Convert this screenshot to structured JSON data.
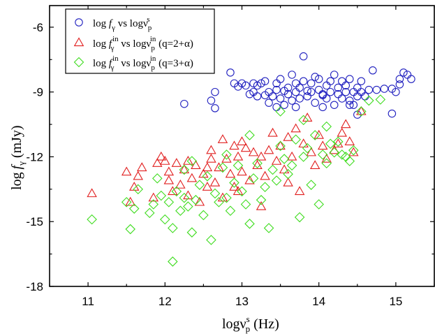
{
  "chart_data": {
    "type": "scatter",
    "title": "",
    "xlabel": {
      "main": "logν",
      "sup": "s",
      "sub": "p",
      "unit": " (Hz)"
    },
    "ylabel": {
      "main": "log",
      "var": "f",
      "sub": "γ",
      "unit": " (mJy)"
    },
    "xlim": [
      10.5,
      15.5
    ],
    "ylim": [
      -18,
      -5
    ],
    "x_ticks": [
      11,
      12,
      13,
      14,
      15
    ],
    "x_tick_labels": [
      "11",
      "12",
      "13",
      "14",
      "15"
    ],
    "y_ticks": [
      -18,
      -15,
      -12,
      -9,
      -6
    ],
    "y_tick_labels": [
      "-18",
      "-15",
      "-12",
      "-9",
      "-6"
    ],
    "grid": false,
    "legend_position": "top-left",
    "legend": [
      {
        "parts": [
          "log ",
          "f",
          "γ",
          " vs logν",
          "p",
          "s",
          ""
        ]
      },
      {
        "parts": [
          "log ",
          "f",
          "γ",
          " vs logν",
          "p",
          "in",
          " (q=2+α)"
        ],
        "sup_on_f": "in"
      },
      {
        "parts": [
          "log ",
          "f",
          "γ",
          " vs logν",
          "p",
          "in",
          " (q=3+α)"
        ],
        "sup_on_f": "in"
      }
    ],
    "series": [
      {
        "marker": "circle",
        "color": "#1f1fbf",
        "points": [
          [
            12.25,
            -9.55
          ],
          [
            12.6,
            -9.4
          ],
          [
            12.65,
            -9.0
          ],
          [
            12.65,
            -9.75
          ],
          [
            12.85,
            -8.1
          ],
          [
            12.9,
            -8.6
          ],
          [
            12.95,
            -8.75
          ],
          [
            13.0,
            -8.6
          ],
          [
            13.05,
            -8.7
          ],
          [
            13.1,
            -9.1
          ],
          [
            13.15,
            -9.0
          ],
          [
            13.2,
            -9.2
          ],
          [
            13.2,
            -8.7
          ],
          [
            13.25,
            -8.6
          ],
          [
            13.3,
            -9.15
          ],
          [
            13.3,
            -8.5
          ],
          [
            13.35,
            -9.0
          ],
          [
            13.35,
            -9.5
          ],
          [
            13.4,
            -9.2
          ],
          [
            13.45,
            -8.9
          ],
          [
            13.45,
            -8.6
          ],
          [
            13.5,
            -9.3
          ],
          [
            13.5,
            -8.4
          ],
          [
            13.55,
            -8.95
          ],
          [
            13.55,
            -9.6
          ],
          [
            13.6,
            -9.1
          ],
          [
            13.6,
            -8.8
          ],
          [
            13.65,
            -8.2
          ],
          [
            13.65,
            -9.4
          ],
          [
            13.7,
            -8.6
          ],
          [
            13.7,
            -9.0
          ],
          [
            13.75,
            -8.8
          ],
          [
            13.75,
            -9.3
          ],
          [
            13.8,
            -8.5
          ],
          [
            13.8,
            -7.35
          ],
          [
            13.85,
            -8.95
          ],
          [
            13.85,
            -9.2
          ],
          [
            13.9,
            -9.0
          ],
          [
            13.9,
            -8.6
          ],
          [
            13.95,
            -8.3
          ],
          [
            13.95,
            -9.5
          ],
          [
            14.0,
            -8.9
          ],
          [
            14.0,
            -8.4
          ],
          [
            14.05,
            -9.1
          ],
          [
            14.05,
            -9.7
          ],
          [
            14.1,
            -8.7
          ],
          [
            14.1,
            -9.3
          ],
          [
            14.15,
            -8.5
          ],
          [
            14.15,
            -9.0
          ],
          [
            14.2,
            -8.2
          ],
          [
            14.2,
            -9.6
          ],
          [
            14.25,
            -8.8
          ],
          [
            14.25,
            -9.1
          ],
          [
            14.3,
            -8.5
          ],
          [
            14.3,
            -9.3
          ],
          [
            14.35,
            -9.0
          ],
          [
            14.35,
            -8.7
          ],
          [
            14.4,
            -9.4
          ],
          [
            14.4,
            -8.4
          ],
          [
            14.45,
            -9.0
          ],
          [
            14.45,
            -9.6
          ],
          [
            14.5,
            -8.8
          ],
          [
            14.5,
            -9.2
          ],
          [
            14.55,
            -8.5
          ],
          [
            14.55,
            -9.0
          ],
          [
            14.6,
            -9.2
          ],
          [
            14.65,
            -8.9
          ],
          [
            14.7,
            -8.0
          ],
          [
            14.75,
            -8.9
          ],
          [
            14.85,
            -8.85
          ],
          [
            14.95,
            -8.85
          ],
          [
            15.0,
            -9.0
          ],
          [
            15.05,
            -8.4
          ],
          [
            15.1,
            -8.1
          ],
          [
            15.15,
            -8.2
          ],
          [
            15.2,
            -8.4
          ],
          [
            15.05,
            -8.65
          ],
          [
            14.95,
            -10.0
          ],
          [
            14.5,
            -10.05
          ],
          [
            14.4,
            -9.6
          ],
          [
            14.05,
            -9.15
          ],
          [
            13.45,
            -9.7
          ],
          [
            13.15,
            -8.6
          ],
          [
            13.7,
            -9.7
          ]
        ]
      },
      {
        "marker": "triangle",
        "color": "#e11f1f",
        "points": [
          [
            11.05,
            -13.7
          ],
          [
            11.5,
            -12.7
          ],
          [
            11.55,
            -14.1
          ],
          [
            11.6,
            -13.4
          ],
          [
            11.65,
            -12.9
          ],
          [
            11.7,
            -12.5
          ],
          [
            11.85,
            -13.9
          ],
          [
            11.9,
            -12.3
          ],
          [
            11.95,
            -12.0
          ],
          [
            12.0,
            -12.2
          ],
          [
            12.05,
            -13.1
          ],
          [
            12.05,
            -12.7
          ],
          [
            12.1,
            -13.6
          ],
          [
            12.15,
            -12.3
          ],
          [
            12.2,
            -13.3
          ],
          [
            12.25,
            -12.6
          ],
          [
            12.3,
            -12.2
          ],
          [
            12.3,
            -13.8
          ],
          [
            12.35,
            -13.0
          ],
          [
            12.4,
            -12.4
          ],
          [
            12.45,
            -14.1
          ],
          [
            12.5,
            -12.8
          ],
          [
            12.55,
            -13.4
          ],
          [
            12.6,
            -11.7
          ],
          [
            12.6,
            -12.1
          ],
          [
            12.65,
            -13.2
          ],
          [
            12.7,
            -12.5
          ],
          [
            12.75,
            -11.2
          ],
          [
            12.75,
            -13.9
          ],
          [
            12.8,
            -12.1
          ],
          [
            12.85,
            -12.8
          ],
          [
            12.9,
            -11.5
          ],
          [
            12.9,
            -13.4
          ],
          [
            12.95,
            -12.0
          ],
          [
            13.0,
            -11.3
          ],
          [
            13.0,
            -12.7
          ],
          [
            13.05,
            -11.6
          ],
          [
            13.1,
            -13.1
          ],
          [
            13.15,
            -11.8
          ],
          [
            13.2,
            -12.4
          ],
          [
            13.25,
            -14.3
          ],
          [
            13.3,
            -12.9
          ],
          [
            13.35,
            -11.7
          ],
          [
            13.4,
            -10.9
          ],
          [
            13.45,
            -12.2
          ],
          [
            13.5,
            -11.5
          ],
          [
            13.55,
            -12.6
          ],
          [
            13.6,
            -11.1
          ],
          [
            13.65,
            -12.0
          ],
          [
            13.7,
            -10.7
          ],
          [
            13.75,
            -13.6
          ],
          [
            13.8,
            -11.4
          ],
          [
            13.85,
            -10.2
          ],
          [
            13.9,
            -11.8
          ],
          [
            13.95,
            -12.4
          ],
          [
            14.0,
            -11.0
          ],
          [
            14.05,
            -11.5
          ],
          [
            14.1,
            -12.1
          ],
          [
            14.2,
            -11.7
          ],
          [
            14.3,
            -10.9
          ],
          [
            14.35,
            -10.5
          ],
          [
            14.4,
            -11.3
          ],
          [
            14.45,
            -11.8
          ],
          [
            14.55,
            -9.9
          ],
          [
            14.25,
            -11.4
          ],
          [
            13.25,
            -12.0
          ],
          [
            12.55,
            -12.5
          ],
          [
            13.6,
            -13.2
          ],
          [
            12.95,
            -13.6
          ]
        ]
      },
      {
        "marker": "diamond",
        "color": "#3fdc1f",
        "points": [
          [
            11.05,
            -14.9
          ],
          [
            11.5,
            -14.1
          ],
          [
            11.55,
            -15.35
          ],
          [
            11.6,
            -14.4
          ],
          [
            11.65,
            -13.5
          ],
          [
            11.8,
            -14.6
          ],
          [
            11.85,
            -14.2
          ],
          [
            11.9,
            -13.0
          ],
          [
            11.95,
            -13.8
          ],
          [
            12.0,
            -14.9
          ],
          [
            12.05,
            -14.1
          ],
          [
            12.1,
            -15.3
          ],
          [
            12.1,
            -16.85
          ],
          [
            12.15,
            -13.6
          ],
          [
            12.2,
            -14.5
          ],
          [
            12.25,
            -13.9
          ],
          [
            12.3,
            -14.3
          ],
          [
            12.35,
            -15.5
          ],
          [
            12.35,
            -12.2
          ],
          [
            12.4,
            -14.0
          ],
          [
            12.45,
            -13.3
          ],
          [
            12.5,
            -14.7
          ],
          [
            12.55,
            -12.9
          ],
          [
            12.6,
            -15.85
          ],
          [
            12.65,
            -13.7
          ],
          [
            12.7,
            -14.1
          ],
          [
            12.75,
            -12.5
          ],
          [
            12.8,
            -13.9
          ],
          [
            12.85,
            -14.5
          ],
          [
            12.9,
            -13.2
          ],
          [
            12.95,
            -12.4
          ],
          [
            13.0,
            -13.6
          ],
          [
            13.05,
            -14.2
          ],
          [
            13.1,
            -15.1
          ],
          [
            13.15,
            -13.0
          ],
          [
            13.2,
            -12.3
          ],
          [
            13.25,
            -14.0
          ],
          [
            13.3,
            -13.4
          ],
          [
            13.35,
            -15.3
          ],
          [
            13.4,
            -12.6
          ],
          [
            13.45,
            -13.1
          ],
          [
            13.5,
            -11.5
          ],
          [
            13.55,
            -12.1
          ],
          [
            13.6,
            -12.8
          ],
          [
            13.65,
            -12.4
          ],
          [
            13.7,
            -11.2
          ],
          [
            13.75,
            -14.8
          ],
          [
            13.8,
            -12.0
          ],
          [
            13.85,
            -11.6
          ],
          [
            13.9,
            -13.3
          ],
          [
            13.95,
            -11.0
          ],
          [
            14.0,
            -14.2
          ],
          [
            14.05,
            -11.9
          ],
          [
            14.1,
            -12.3
          ],
          [
            14.15,
            -11.4
          ],
          [
            14.2,
            -11.8
          ],
          [
            14.25,
            -11.3
          ],
          [
            14.3,
            -11.9
          ],
          [
            14.35,
            -12.0
          ],
          [
            14.4,
            -12.2
          ],
          [
            14.45,
            -11.7
          ],
          [
            14.55,
            -9.9
          ],
          [
            14.65,
            -9.4
          ],
          [
            14.8,
            -9.35
          ],
          [
            13.8,
            -10.3
          ],
          [
            13.5,
            -9.9
          ],
          [
            12.8,
            -11.9
          ],
          [
            12.25,
            -12.6
          ],
          [
            13.1,
            -11.0
          ],
          [
            14.1,
            -10.6
          ]
        ]
      }
    ]
  }
}
